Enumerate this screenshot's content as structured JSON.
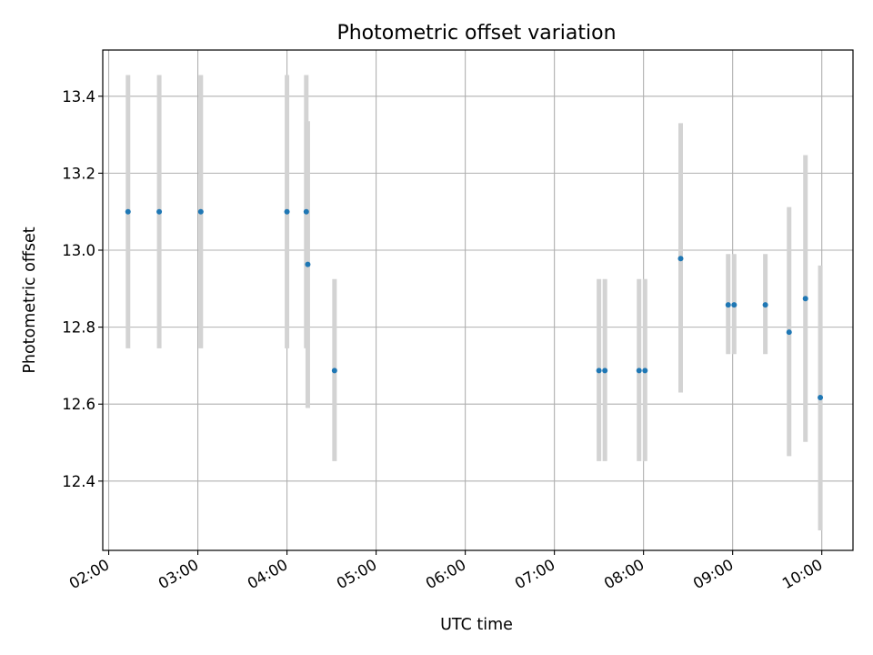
{
  "chart_data": {
    "type": "scatter",
    "title": "Photometric offset variation",
    "xlabel": "UTC time",
    "ylabel": "Photometric offset",
    "x_tick_labels": [
      "02:00",
      "03:00",
      "04:00",
      "05:00",
      "06:00",
      "07:00",
      "08:00",
      "09:00",
      "10:00"
    ],
    "y_tick_labels": [
      "12.4",
      "12.6",
      "12.8",
      "13.0",
      "13.2",
      "13.4"
    ],
    "x_ticks": [
      "02:00",
      "03:00",
      "04:00",
      "05:00",
      "06:00",
      "07:00",
      "08:00",
      "09:00",
      "10:00"
    ],
    "y_ticks": [
      12.4,
      12.6,
      12.8,
      13.0,
      13.2,
      13.4
    ],
    "xlim": [
      "01:56",
      "10:21"
    ],
    "ylim": [
      12.22,
      13.52
    ],
    "grid": true,
    "colors": {
      "point": "#1f77b4",
      "errorbar": "#d3d3d3",
      "grid": "#b0b0b0"
    },
    "points": [
      {
        "x": "02:13",
        "y": 13.1,
        "yerr_low": 12.745,
        "yerr_high": 13.455
      },
      {
        "x": "02:34",
        "y": 13.1,
        "yerr_low": 12.745,
        "yerr_high": 13.455
      },
      {
        "x": "03:02",
        "y": 13.1,
        "yerr_low": 12.745,
        "yerr_high": 13.455
      },
      {
        "x": "04:00",
        "y": 13.1,
        "yerr_low": 12.745,
        "yerr_high": 13.455
      },
      {
        "x": "04:13",
        "y": 13.1,
        "yerr_low": 12.745,
        "yerr_high": 13.455
      },
      {
        "x": "04:14",
        "y": 12.963,
        "yerr_low": 12.59,
        "yerr_high": 13.335
      },
      {
        "x": "04:32",
        "y": 12.687,
        "yerr_low": 12.452,
        "yerr_high": 12.925
      },
      {
        "x": "07:30",
        "y": 12.687,
        "yerr_low": 12.452,
        "yerr_high": 12.925
      },
      {
        "x": "07:34",
        "y": 12.687,
        "yerr_low": 12.452,
        "yerr_high": 12.925
      },
      {
        "x": "07:57",
        "y": 12.687,
        "yerr_low": 12.452,
        "yerr_high": 12.925
      },
      {
        "x": "08:01",
        "y": 12.687,
        "yerr_low": 12.452,
        "yerr_high": 12.925
      },
      {
        "x": "08:25",
        "y": 12.978,
        "yerr_low": 12.63,
        "yerr_high": 13.33
      },
      {
        "x": "08:57",
        "y": 12.858,
        "yerr_low": 12.73,
        "yerr_high": 12.99
      },
      {
        "x": "09:01",
        "y": 12.858,
        "yerr_low": 12.73,
        "yerr_high": 12.99
      },
      {
        "x": "09:22",
        "y": 12.858,
        "yerr_low": 12.73,
        "yerr_high": 12.99
      },
      {
        "x": "09:38",
        "y": 12.787,
        "yerr_low": 12.465,
        "yerr_high": 13.112
      },
      {
        "x": "09:49",
        "y": 12.874,
        "yerr_low": 12.502,
        "yerr_high": 13.247
      },
      {
        "x": "09:59",
        "y": 12.617,
        "yerr_low": 12.272,
        "yerr_high": 12.96
      }
    ]
  }
}
